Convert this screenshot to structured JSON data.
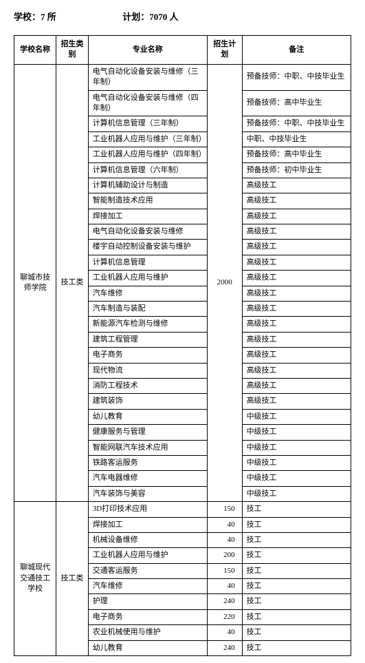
{
  "header": {
    "schools_label": "学校：",
    "schools_value": "7 所",
    "plan_label": "计划：",
    "plan_value": "7070 人"
  },
  "columns": {
    "school": "学校名称",
    "category": "招生类别",
    "major": "专业名称",
    "plan": "招生计划",
    "remark": "备注"
  },
  "school1": {
    "name": "聊城市技师学院",
    "category": "技工类",
    "plan": "2000",
    "rows": [
      {
        "major": "电气自动化设备安装与维修（三年制）",
        "remark": "预备技师：中职、中技毕业生"
      },
      {
        "major": "电气自动化设备安装与维修（四年制）",
        "remark": "预备技师：高中毕业生"
      },
      {
        "major": "计算机信息管理（三年制）",
        "remark": "预备技师：中职、中技毕业生"
      },
      {
        "major": "工业机器人应用与维护（三年制）",
        "remark": "中职、中技毕业生"
      },
      {
        "major": "工业机器人应用与维护（四年制）",
        "remark": "预备技师：高中毕业生"
      },
      {
        "major": "计算机信息管理（六年制）",
        "remark": "预备技师：初中毕业生"
      },
      {
        "major": "计算机辅助设计与制造",
        "remark": "高级技工"
      },
      {
        "major": "智能制造技术应用",
        "remark": "高级技工"
      },
      {
        "major": "焊接加工",
        "remark": "高级技工"
      },
      {
        "major": "电气自动化设备安装与维修",
        "remark": "高级技工"
      },
      {
        "major": "楼宇自动控制设备安装与维护",
        "remark": "高级技工"
      },
      {
        "major": "计算机信息管理",
        "remark": "高级技工"
      },
      {
        "major": "工业机器人应用与维护",
        "remark": "高级技工"
      },
      {
        "major": "汽车维修",
        "remark": "高级技工"
      },
      {
        "major": "汽车制造与装配",
        "remark": "高级技工"
      },
      {
        "major": "新能源汽车检测与维修",
        "remark": "高级技工"
      },
      {
        "major": "建筑工程管理",
        "remark": "高级技工"
      },
      {
        "major": "电子商务",
        "remark": "高级技工"
      },
      {
        "major": "现代物流",
        "remark": "高级技工"
      },
      {
        "major": "消防工程技术",
        "remark": "高级技工"
      },
      {
        "major": "建筑装饰",
        "remark": "高级技工"
      },
      {
        "major": "幼儿教育",
        "remark": "中级技工"
      },
      {
        "major": "健康服务与管理",
        "remark": "中级技工"
      },
      {
        "major": "智能网联汽车技术应用",
        "remark": "中级技工"
      },
      {
        "major": "铁路客运服务",
        "remark": "中级技工"
      },
      {
        "major": "汽车电器维修",
        "remark": "中级技工"
      },
      {
        "major": "汽车装饰与美容",
        "remark": "中级技工"
      }
    ]
  },
  "school2": {
    "name": "聊城现代交通技工学校",
    "category": "技工类",
    "rows": [
      {
        "major": "3D打印技术应用",
        "plan": "150",
        "remark": "技工"
      },
      {
        "major": "焊接加工",
        "plan": "40",
        "remark": "技工"
      },
      {
        "major": "机械设备维修",
        "plan": "40",
        "remark": "技工"
      },
      {
        "major": "工业机器人应用与维护",
        "plan": "200",
        "remark": "技工"
      },
      {
        "major": "交通客运服务",
        "plan": "150",
        "remark": "技工"
      },
      {
        "major": "汽车维修",
        "plan": "40",
        "remark": "技工"
      },
      {
        "major": "护理",
        "plan": "240",
        "remark": "技工"
      },
      {
        "major": "电子商务",
        "plan": "220",
        "remark": "技工"
      },
      {
        "major": "农业机械使用与维护",
        "plan": "40",
        "remark": "技工"
      },
      {
        "major": "幼儿教育",
        "plan": "240",
        "remark": "技工"
      }
    ]
  }
}
